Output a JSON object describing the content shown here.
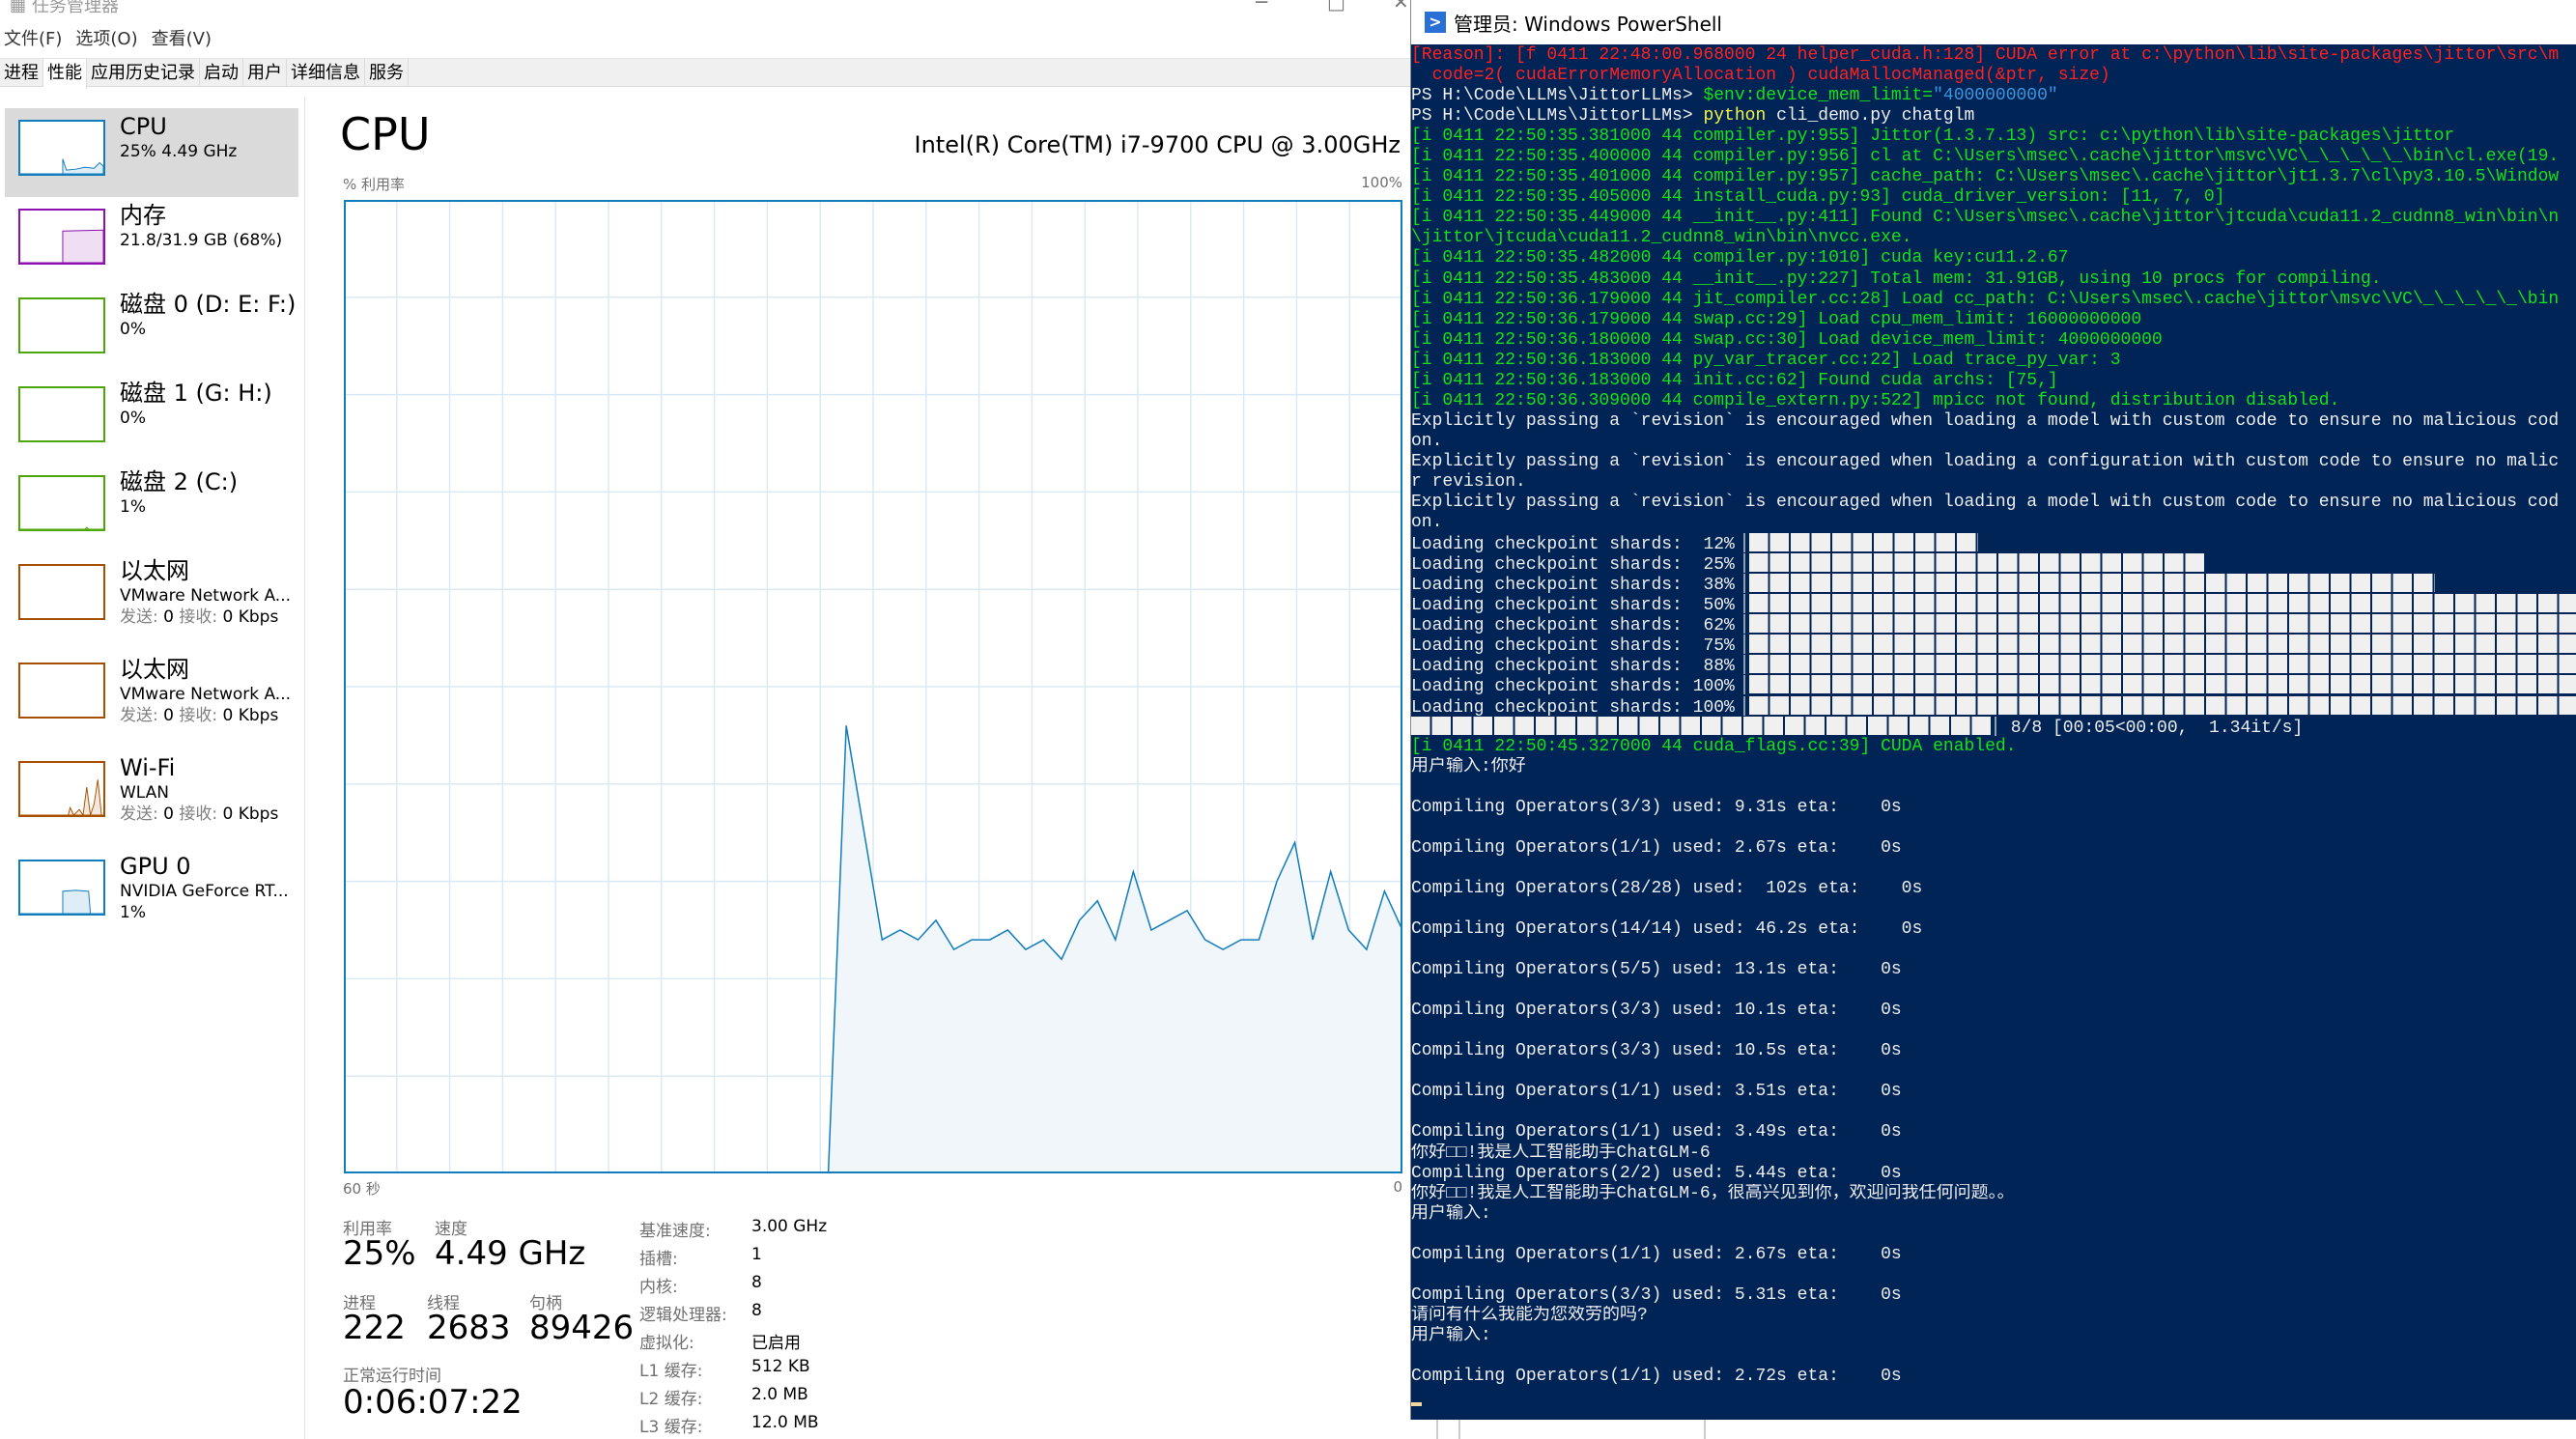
{
  "taskmgr": {
    "title": "任务管理器",
    "controls": [
      "─",
      "□",
      "✕"
    ],
    "menu": [
      "文件(F)",
      "选项(O)",
      "查看(V)"
    ],
    "tabs": [
      {
        "label": "进程",
        "selected": false
      },
      {
        "label": "性能",
        "selected": true
      },
      {
        "label": "应用历史记录",
        "selected": false
      },
      {
        "label": "启动",
        "selected": false
      },
      {
        "label": "用户",
        "selected": false
      },
      {
        "label": "详细信息",
        "selected": false
      },
      {
        "label": "服务",
        "selected": false
      }
    ],
    "sidebar": [
      {
        "title": "CPU",
        "line2": "25% 4.49 GHz",
        "color": "#117dbb",
        "selected": true
      },
      {
        "title": "内存",
        "line2": "21.8/31.9 GB (68%)",
        "color": "#8b12ae"
      },
      {
        "title": "磁盘 0 (D: E: F:)",
        "line2": "0%",
        "color": "#4da60c"
      },
      {
        "title": "磁盘 1 (G: H:)",
        "line2": "0%",
        "color": "#4da60c"
      },
      {
        "title": "磁盘 2 (C:)",
        "line2": "1%",
        "color": "#4da60c"
      },
      {
        "title": "以太网",
        "line2": "VMware Network A...",
        "send_label": "发送:",
        "send": "0",
        "recv_label": "接收:",
        "recv": "0 Kbps",
        "color": "#a74f01"
      },
      {
        "title": "以太网",
        "line2": "VMware Network A...",
        "send_label": "发送:",
        "send": "0",
        "recv_label": "接收:",
        "recv": "0 Kbps",
        "color": "#a74f01"
      },
      {
        "title": "Wi-Fi",
        "line2": "WLAN",
        "send_label": "发送:",
        "send": "0",
        "recv_label": "接收:",
        "recv": "0 Kbps",
        "color": "#a74f01"
      },
      {
        "title": "GPU 0",
        "line2": "NVIDIA GeForce RT...",
        "line3": "1%",
        "color": "#117dbb"
      }
    ],
    "main": {
      "title": "CPU",
      "model": "Intel(R) Core(TM) i7-9700 CPU @ 3.00GHz",
      "stats": {
        "util_label": "利用率",
        "util": "25%",
        "speed_label": "速度",
        "speed": "4.49 GHz",
        "proc_label": "进程",
        "proc": "222",
        "thread_label": "线程",
        "thread": "2683",
        "handle_label": "句柄",
        "handle": "89426",
        "uptime_label": "正常运行时间",
        "uptime": "0:06:07:22"
      },
      "specs": [
        {
          "label": "基准速度:",
          "value": "3.00 GHz"
        },
        {
          "label": "插槽:",
          "value": "1"
        },
        {
          "label": "内核:",
          "value": "8"
        },
        {
          "label": "逻辑处理器:",
          "value": "8"
        },
        {
          "label": "虚拟化:",
          "value": "已启用"
        },
        {
          "label": "L1 缓存:",
          "value": "512 KB"
        },
        {
          "label": "L2 缓存:",
          "value": "2.0 MB"
        },
        {
          "label": "L3 缓存:",
          "value": "12.0 MB"
        }
      ]
    }
  },
  "chart_data": {
    "type": "area",
    "ylabel": "% 利用率",
    "ymax_label": "100%",
    "x_left_label": "60 秒",
    "x_right_label": "0",
    "xlim": [
      60,
      0
    ],
    "ylim": [
      0,
      100
    ],
    "grid": true,
    "color": "#117dbb",
    "fill": "#f1f6fa",
    "values": [
      0,
      0,
      0,
      0,
      0,
      0,
      0,
      0,
      0,
      0,
      0,
      0,
      0,
      0,
      0,
      0,
      0,
      0,
      0,
      0,
      0,
      0,
      0,
      0,
      0,
      0,
      0,
      0,
      46,
      35,
      24,
      25,
      24,
      26,
      23,
      24,
      24,
      25,
      23,
      24,
      22,
      26,
      28,
      24,
      31,
      25,
      26,
      27,
      24,
      23,
      24,
      24,
      30,
      34,
      24,
      31,
      25,
      23,
      29,
      25
    ]
  },
  "powershell": {
    "title": "管理员: Windows PowerShell",
    "colors": {
      "r": "#ff2020",
      "g": "#16e016",
      "w": "#eeedf0",
      "y": "#f5f543",
      "c": "#3a96dd"
    },
    "lines": [
      [
        [
          "r",
          "[Reason]: [f 0411 22:48:00.968000 24 helper_cuda.h:128] CUDA error at c:\\python\\lib\\site-packages\\jittor\\src\\m"
        ]
      ],
      [
        [
          "r",
          "  code=2( cudaErrorMemoryAllocation ) cudaMallocManaged(&ptr, size)"
        ]
      ],
      [
        [
          "w",
          "PS H:\\Code\\LLMs\\JittorLLMs> "
        ],
        [
          "g",
          "$env:device_mem_limit="
        ],
        [
          "c",
          "\"4000000000\""
        ]
      ],
      [
        [
          "w",
          "PS H:\\Code\\LLMs\\JittorLLMs> "
        ],
        [
          "y",
          "python"
        ],
        [
          "w",
          " cli_demo.py chatglm"
        ]
      ],
      [
        [
          "g",
          "[i 0411 22:50:35.381000 44 compiler.py:955] Jittor(1.3.7.13) src: c:\\python\\lib\\site-packages\\jittor"
        ]
      ],
      [
        [
          "g",
          "[i 0411 22:50:35.400000 44 compiler.py:956] cl at C:\\Users\\msec\\.cache\\jittor\\msvc\\VC\\_\\_\\_\\_\\_\\bin\\cl.exe(19."
        ]
      ],
      [
        [
          "g",
          "[i 0411 22:50:35.401000 44 compiler.py:957] cache_path: C:\\Users\\msec\\.cache\\jittor\\jt1.3.7\\cl\\py3.10.5\\Window"
        ]
      ],
      [
        [
          "g",
          "[i 0411 22:50:35.405000 44 install_cuda.py:93] cuda_driver_version: [11, 7, 0]"
        ]
      ],
      [
        [
          "g",
          "[i 0411 22:50:35.449000 44 __init__.py:411] Found C:\\Users\\msec\\.cache\\jittor\\jtcuda\\cuda11.2_cudnn8_win\\bin\\n"
        ]
      ],
      [
        [
          "g",
          "\\jittor\\jtcuda\\cuda11.2_cudnn8_win\\bin\\nvcc.exe."
        ]
      ],
      [
        [
          "g",
          "[i 0411 22:50:35.482000 44 compiler.py:1010] cuda key:cu11.2.67"
        ]
      ],
      [
        [
          "g",
          "[i 0411 22:50:35.483000 44 __init__.py:227] Total mem: 31.91GB, using 10 procs for compiling."
        ]
      ],
      [
        [
          "g",
          "[i 0411 22:50:36.179000 44 jit_compiler.cc:28] Load cc_path: C:\\Users\\msec\\.cache\\jittor\\msvc\\VC\\_\\_\\_\\_\\_\\bin"
        ]
      ],
      [
        [
          "g",
          "[i 0411 22:50:36.179000 44 swap.cc:29] Load cpu_mem_limit: 16000000000"
        ]
      ],
      [
        [
          "g",
          "[i 0411 22:50:36.180000 44 swap.cc:30] Load device_mem_limit: 4000000000"
        ]
      ],
      [
        [
          "g",
          "[i 0411 22:50:36.183000 44 py_var_tracer.cc:22] Load trace_py_var: 3"
        ]
      ],
      [
        [
          "g",
          "[i 0411 22:50:36.183000 44 init.cc:62] Found cuda archs: [75,]"
        ]
      ],
      [
        [
          "g",
          "[i 0411 22:50:36.309000 44 compile_extern.py:522] mpicc not found, distribution disabled."
        ]
      ],
      [
        [
          "w",
          "Explicitly passing a `revision` is encouraged when loading a model with custom code to ensure no malicious cod"
        ]
      ],
      [
        [
          "w",
          "on."
        ]
      ],
      [
        [
          "w",
          "Explicitly passing a `revision` is encouraged when loading a configuration with custom code to ensure no malic"
        ]
      ],
      [
        [
          "w",
          "r revision."
        ]
      ],
      [
        [
          "w",
          "Explicitly passing a `revision` is encouraged when loading a model with custom code to ensure no malicious cod"
        ]
      ],
      [
        [
          "w",
          "on."
        ]
      ],
      {
        "label": "Loading checkpoint shards:  12%",
        "blocks": 11
      },
      {
        "label": "Loading checkpoint shards:  25%",
        "blocks": 22
      },
      {
        "label": "Loading checkpoint shards:  38%",
        "blocks": 33
      },
      {
        "label": "Loading checkpoint shards:  50%",
        "blocks": 44
      },
      {
        "label": "Loading checkpoint shards:  62%",
        "blocks": 55
      },
      {
        "label": "Loading checkpoint shards:  75%",
        "blocks": 66
      },
      {
        "label": "Loading checkpoint shards:  88%",
        "blocks": 77
      },
      {
        "label": "Loading checkpoint shards: 100%",
        "blocks": 88
      },
      {
        "label": "Loading checkpoint shards: 100%",
        "blocks": 88
      },
      {
        "label": "",
        "blocks": 28,
        "suffix": " 8/8 [00:05<00:00,  1.34it/s]"
      },
      [
        [
          "g",
          "[i 0411 22:50:45.327000 44 cuda_flags.cc:39] CUDA enabled."
        ]
      ],
      [
        [
          "w",
          "用户输入:你好"
        ]
      ],
      [],
      [
        [
          "w",
          "Compiling Operators(3/3) used: 9.31s eta:    0s"
        ]
      ],
      [],
      [
        [
          "w",
          "Compiling Operators(1/1) used: 2.67s eta:    0s"
        ]
      ],
      [],
      [
        [
          "w",
          "Compiling Operators(28/28) used:  102s eta:    0s"
        ]
      ],
      [],
      [
        [
          "w",
          "Compiling Operators(14/14) used: 46.2s eta:    0s"
        ]
      ],
      [],
      [
        [
          "w",
          "Compiling Operators(5/5) used: 13.1s eta:    0s"
        ]
      ],
      [],
      [
        [
          "w",
          "Compiling Operators(3/3) used: 10.1s eta:    0s"
        ]
      ],
      [],
      [
        [
          "w",
          "Compiling Operators(3/3) used: 10.5s eta:    0s"
        ]
      ],
      [],
      [
        [
          "w",
          "Compiling Operators(1/1) used: 3.51s eta:    0s"
        ]
      ],
      [],
      [
        [
          "w",
          "Compiling Operators(1/1) used: 3.49s eta:    0s"
        ]
      ],
      [
        [
          "w",
          "你好□□!我是人工智能助手ChatGLM-6"
        ]
      ],
      [
        [
          "w",
          "Compiling Operators(2/2) used: 5.44s eta:    0s"
        ]
      ],
      [
        [
          "w",
          "你好□□!我是人工智能助手ChatGLM-6，很高兴见到你，欢迎问我任何问题。。"
        ]
      ],
      [
        [
          "w",
          "用户输入:"
        ]
      ],
      [],
      [
        [
          "w",
          "Compiling Operators(1/1) used: 2.67s eta:    0s"
        ]
      ],
      [],
      [
        [
          "w",
          "Compiling Operators(3/3) used: 5.31s eta:    0s"
        ]
      ],
      [
        [
          "w",
          "请问有什么我能为您效劳的吗?"
        ]
      ],
      [
        [
          "w",
          "用户输入:"
        ]
      ],
      [],
      [
        [
          "w",
          "Compiling Operators(1/1) used: 2.72s eta:    0s"
        ]
      ],
      {
        "cursor": true
      }
    ]
  }
}
